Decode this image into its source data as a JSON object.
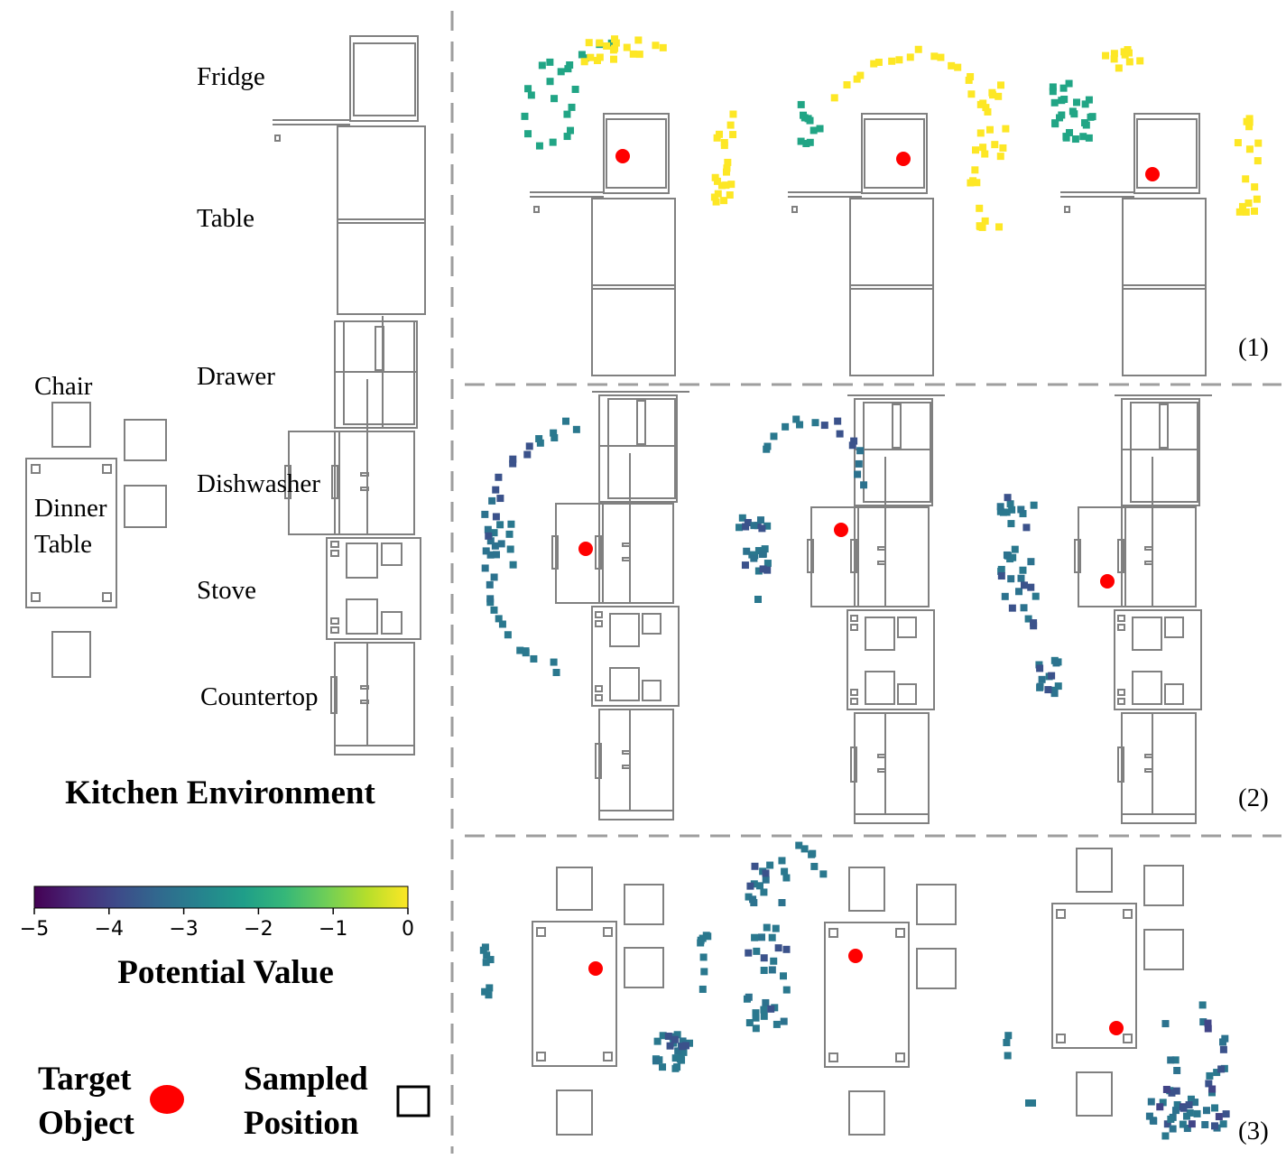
{
  "furniture_labels": {
    "fridge": "Fridge",
    "table": "Table",
    "drawer": "Drawer",
    "chair": "Chair",
    "dishwasher": "Dishwasher",
    "dinner_table_line1": "Dinner",
    "dinner_table_line2": "Table",
    "stove": "Stove",
    "countertop": "Countertop"
  },
  "environment_title": "Kitchen Environment",
  "colorbar": {
    "title": "Potential Value",
    "ticks": [
      "−5",
      "−4",
      "−3",
      "−2",
      "−1",
      "0"
    ],
    "min": -5,
    "max": 0,
    "colormap": "viridis",
    "colors": [
      "#440154",
      "#482878",
      "#3e4a89",
      "#31688e",
      "#26828e",
      "#1f9e89",
      "#35b779",
      "#6ece58",
      "#b5de2b",
      "#fde725"
    ]
  },
  "legend": {
    "target_line1": "Target",
    "target_line2": "Object",
    "target_color": "#ff0000",
    "sampled_line1": "Sampled",
    "sampled_line2": "Position"
  },
  "row_labels": [
    "(1)",
    "(2)",
    "(3)"
  ]
}
